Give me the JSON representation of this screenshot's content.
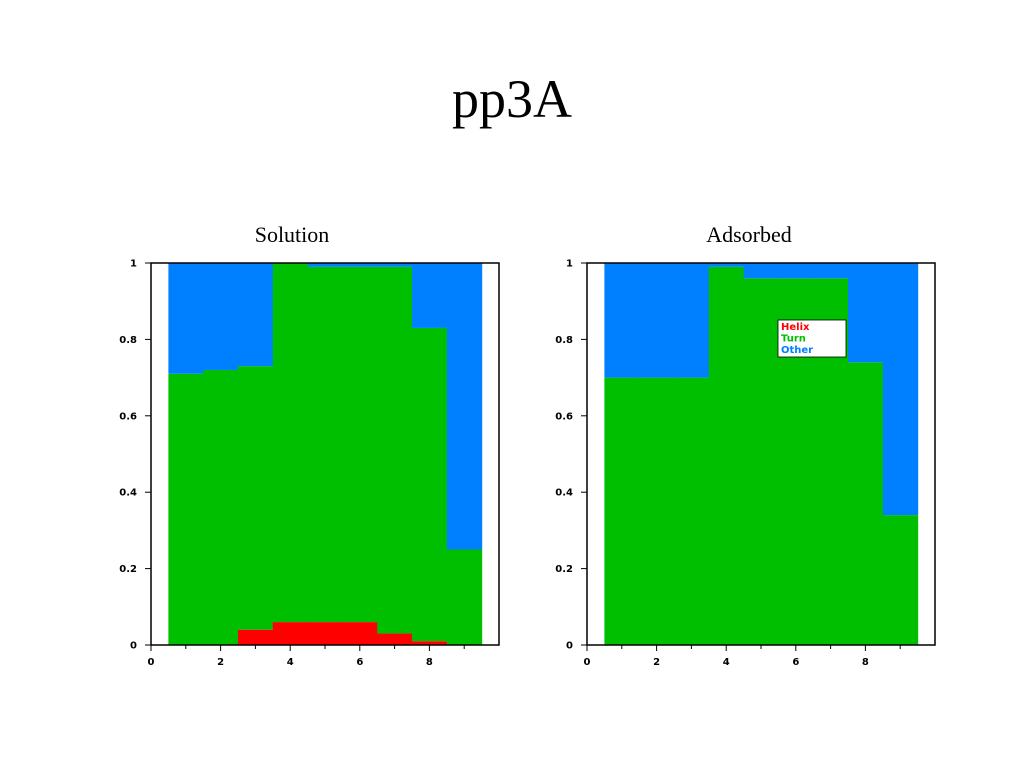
{
  "slide": {
    "title": "pp3A"
  },
  "chart_data": [
    {
      "type": "bar",
      "stacked": true,
      "title": "Solution",
      "xlabel": "",
      "ylabel": "",
      "x": [
        1,
        2,
        3,
        4,
        5,
        6,
        7,
        8,
        9
      ],
      "xlim": [
        0,
        10
      ],
      "ylim": [
        0,
        1
      ],
      "xticks": [
        "0",
        "2",
        "4",
        "6",
        "8"
      ],
      "yticks": [
        "0",
        "0.2",
        "0.4",
        "0.6",
        "0.8",
        "1"
      ],
      "legend_position": "none",
      "series": [
        {
          "name": "Helix",
          "color": "#ff0000",
          "values": [
            0,
            0,
            0.04,
            0.06,
            0.06,
            0.06,
            0.03,
            0.01,
            0
          ]
        },
        {
          "name": "Turn",
          "color": "#00bf00",
          "values": [
            0.71,
            0.72,
            0.69,
            0.94,
            0.93,
            0.93,
            0.96,
            0.82,
            0.25
          ]
        },
        {
          "name": "Other",
          "color": "#007fff",
          "values": [
            0.29,
            0.28,
            0.27,
            0,
            0.01,
            0.01,
            0.01,
            0.17,
            0.75
          ]
        }
      ]
    },
    {
      "type": "bar",
      "stacked": true,
      "title": "Adsorbed",
      "xlabel": "",
      "ylabel": "",
      "x": [
        1,
        2,
        3,
        4,
        5,
        6,
        7,
        8,
        9
      ],
      "xlim": [
        0,
        10
      ],
      "ylim": [
        0,
        1
      ],
      "xticks": [
        "0",
        "2",
        "4",
        "6",
        "8"
      ],
      "yticks": [
        "0",
        "0.2",
        "0.4",
        "0.6",
        "0.8",
        "1"
      ],
      "legend_position": "top-right",
      "series": [
        {
          "name": "Helix",
          "color": "#ff0000",
          "values": [
            0,
            0,
            0,
            0,
            0,
            0,
            0,
            0,
            0
          ]
        },
        {
          "name": "Turn",
          "color": "#00bf00",
          "values": [
            0.7,
            0.7,
            0.7,
            0.99,
            0.96,
            0.96,
            0.96,
            0.74,
            0.34
          ]
        },
        {
          "name": "Other",
          "color": "#007fff",
          "values": [
            0.3,
            0.3,
            0.3,
            0.01,
            0.04,
            0.04,
            0.04,
            0.26,
            0.66
          ]
        }
      ]
    }
  ]
}
